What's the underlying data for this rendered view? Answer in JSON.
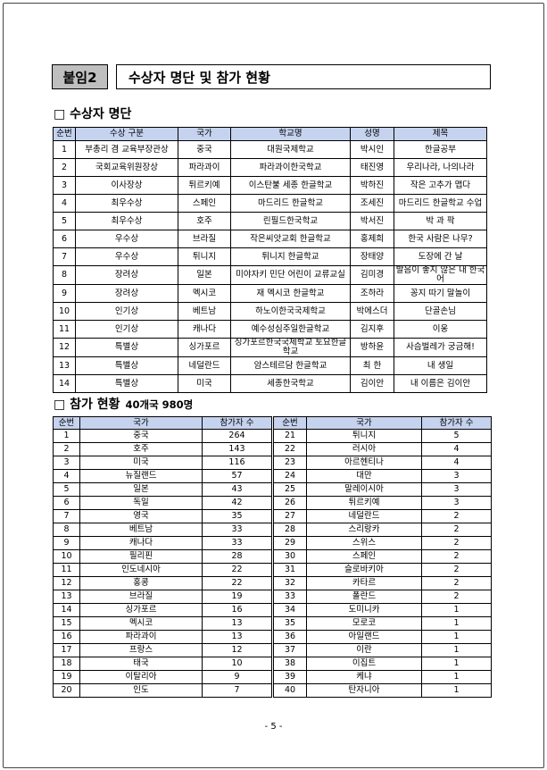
{
  "header": {
    "label": "붙임2",
    "title": "수상자 명단 및 참가 현황"
  },
  "awards": {
    "heading": "□ 수상자 명단",
    "columns": [
      "순번",
      "수상 구분",
      "국가",
      "학교명",
      "성명",
      "제목"
    ],
    "rows": [
      [
        "1",
        "부총리 겸 교육부장관상",
        "중국",
        "대원국제학교",
        "박시인",
        "한글공부"
      ],
      [
        "2",
        "국회교육위원장상",
        "파라과이",
        "파라과이한국학교",
        "태진영",
        "우리나라, 나의나라"
      ],
      [
        "3",
        "이사장상",
        "튀르키예",
        "이스탄불 세종 한글학교",
        "박하진",
        "작은 고추가 맵다"
      ],
      [
        "4",
        "최우수상",
        "스페인",
        "마드리드 한글학교",
        "조세진",
        "마드리드 한글학교 수업"
      ],
      [
        "5",
        "최우수상",
        "호주",
        "린필드한국학교",
        "박서진",
        "박 과 팍"
      ],
      [
        "6",
        "우수상",
        "브라질",
        "작은씨앗교회 한글학교",
        "홍제희",
        "한국 사람은 나무?"
      ],
      [
        "7",
        "우수상",
        "튀니지",
        "튀니지 한글학교",
        "장태양",
        "도장에 간 날"
      ],
      [
        "8",
        "장려상",
        "일본",
        "미야자키 민단 어린이 교류교실",
        "김미경",
        "발음이 좋지 않은 내 한국어"
      ],
      [
        "9",
        "장려상",
        "멕시코",
        "재 멕시코 한글학교",
        "조하라",
        "꽁지 따기 말놀이"
      ],
      [
        "10",
        "인기상",
        "베트남",
        "하노이한국국제학교",
        "박에스더",
        "단골손님"
      ],
      [
        "11",
        "인기상",
        "캐나다",
        "예수성심주일한글학교",
        "김지후",
        "이웅"
      ],
      [
        "12",
        "특별상",
        "싱가포르",
        "싱가포르한국국제학교 토요한글학교",
        "방하윤",
        "사슴벌레가 궁금해!"
      ],
      [
        "13",
        "특별상",
        "네덜란드",
        "암스테르담 한글학교",
        "최 한",
        "내 생일"
      ],
      [
        "14",
        "특별상",
        "미국",
        "세종한국학교",
        "김이안",
        "내 이름은 김이안"
      ]
    ]
  },
  "participation": {
    "heading": "□ 참가 현황",
    "summary": "40개국 980명",
    "columns": [
      "순번",
      "국가",
      "참가자 수",
      "순번",
      "국가",
      "참가자 수"
    ],
    "rows": [
      [
        "1",
        "중국",
        "264",
        "21",
        "튀니지",
        "5"
      ],
      [
        "2",
        "호주",
        "143",
        "22",
        "러시아",
        "4"
      ],
      [
        "3",
        "미국",
        "116",
        "23",
        "아르헨티나",
        "4"
      ],
      [
        "4",
        "뉴질랜드",
        "57",
        "24",
        "대만",
        "3"
      ],
      [
        "5",
        "일본",
        "43",
        "25",
        "말레이시아",
        "3"
      ],
      [
        "6",
        "독일",
        "42",
        "26",
        "튀르키예",
        "3"
      ],
      [
        "7",
        "영국",
        "35",
        "27",
        "네덜란드",
        "2"
      ],
      [
        "8",
        "베트남",
        "33",
        "28",
        "스리랑카",
        "2"
      ],
      [
        "9",
        "캐나다",
        "33",
        "29",
        "스위스",
        "2"
      ],
      [
        "10",
        "필리핀",
        "28",
        "30",
        "스페인",
        "2"
      ],
      [
        "11",
        "인도네시아",
        "22",
        "31",
        "슬로바키아",
        "2"
      ],
      [
        "12",
        "홍콩",
        "22",
        "32",
        "카타르",
        "2"
      ],
      [
        "13",
        "브라질",
        "19",
        "33",
        "폴란드",
        "2"
      ],
      [
        "14",
        "싱가포르",
        "16",
        "34",
        "도미니카",
        "1"
      ],
      [
        "15",
        "멕시코",
        "13",
        "35",
        "모로코",
        "1"
      ],
      [
        "16",
        "파라과이",
        "13",
        "36",
        "아일랜드",
        "1"
      ],
      [
        "17",
        "프랑스",
        "12",
        "37",
        "이란",
        "1"
      ],
      [
        "18",
        "태국",
        "10",
        "38",
        "이집트",
        "1"
      ],
      [
        "19",
        "이탈리아",
        "9",
        "39",
        "케냐",
        "1"
      ],
      [
        "20",
        "인도",
        "7",
        "40",
        "탄자니아",
        "1"
      ]
    ]
  },
  "footer": {
    "page": "- 5 -"
  }
}
